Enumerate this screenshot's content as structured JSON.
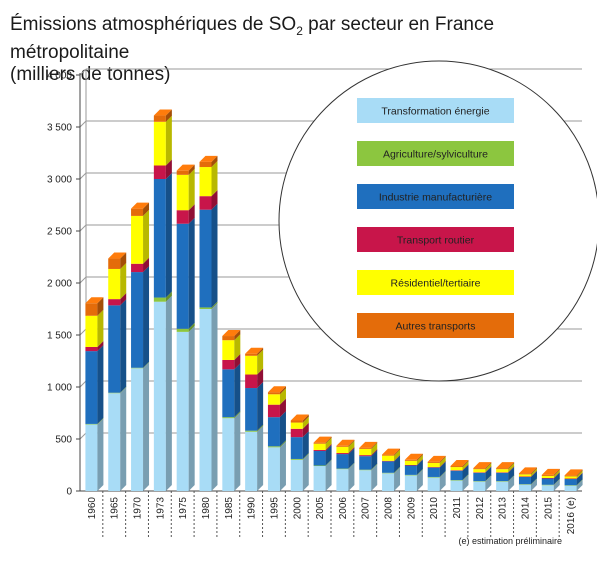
{
  "chart_data": {
    "type": "bar",
    "stacked": true,
    "title_main": "Émissions atmosphériques de SO",
    "title_sub": "2",
    "title_rest": " par secteur en France métropolitaine",
    "title_line2": "(milliers de tonnes)",
    "ylim": [
      0,
      4000
    ],
    "yticks": [
      0,
      500,
      1000,
      1500,
      2000,
      2500,
      3000,
      3500,
      4000
    ],
    "ytick_labels": [
      "0",
      "500",
      "1 000",
      "1 500",
      "2 000",
      "2 500",
      "3 000",
      "3 500",
      "4 000"
    ],
    "grid": true,
    "legend_position": "inside-right-circle",
    "categories": [
      "1960",
      "1965",
      "1970",
      "1973",
      "1975",
      "1980",
      "1985",
      "1990",
      "1995",
      "2000",
      "2005",
      "2006",
      "2007",
      "2008",
      "2009",
      "2010",
      "2011",
      "2012",
      "2013",
      "2014",
      "2015",
      "2016 (e)"
    ],
    "series": [
      {
        "name": "Transformation énergie",
        "color": "#a8dcf6",
        "values": [
          640,
          940,
          1180,
          1820,
          1530,
          1750,
          700,
          570,
          420,
          300,
          240,
          210,
          200,
          170,
          150,
          130,
          100,
          90,
          90,
          60,
          55,
          50
        ]
      },
      {
        "name": "Agriculture/sylviculture",
        "color": "#8cc63f",
        "values": [
          5,
          5,
          5,
          40,
          30,
          15,
          10,
          10,
          10,
          8,
          5,
          5,
          5,
          5,
          5,
          5,
          5,
          5,
          5,
          5,
          5,
          5
        ]
      },
      {
        "name": "Industrie manufacturière",
        "color": "#1f6fbe",
        "values": [
          700,
          840,
          920,
          1140,
          1010,
          940,
          460,
          410,
          280,
          210,
          140,
          140,
          130,
          110,
          90,
          90,
          90,
          80,
          80,
          70,
          60,
          60
        ]
      },
      {
        "name": "Transport routier",
        "color": "#c8154a",
        "values": [
          40,
          60,
          80,
          130,
          130,
          130,
          90,
          130,
          120,
          80,
          10,
          10,
          10,
          5,
          5,
          5,
          5,
          5,
          5,
          5,
          5,
          5
        ]
      },
      {
        "name": "Résidentiel/tertiaire",
        "color": "#ffff00",
        "values": [
          300,
          290,
          460,
          420,
          340,
          280,
          190,
          180,
          100,
          60,
          60,
          60,
          60,
          50,
          40,
          40,
          30,
          30,
          30,
          20,
          20,
          20
        ]
      },
      {
        "name": "Autres transports",
        "color": "#e46c0a",
        "values": [
          120,
          100,
          70,
          60,
          40,
          50,
          40,
          20,
          20,
          20,
          10,
          10,
          10,
          10,
          10,
          10,
          10,
          10,
          10,
          10,
          10,
          10
        ]
      }
    ],
    "legend_order": [
      "Transformation énergie",
      "Agriculture/sylviculture",
      "Industrie manufacturière",
      "Transport routier",
      "Résidentiel/tertiaire",
      "Autres transports"
    ],
    "note": "(e) estimation préliminaire"
  }
}
